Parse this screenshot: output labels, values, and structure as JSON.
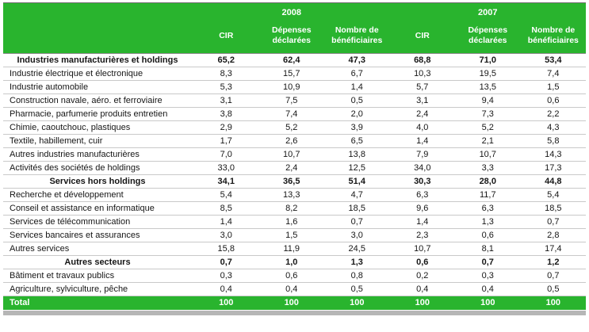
{
  "colors": {
    "header_green": "#29b42e",
    "total_row_green": "#29b42e",
    "header_text": "#ffffff",
    "body_text": "#161616"
  },
  "chart_data": {
    "type": "table",
    "title": "",
    "year_groups": [
      "2008",
      "2007"
    ],
    "sub_columns": [
      "CIR",
      "Dépenses déclarées",
      "Nombre de bénéficiaires"
    ],
    "rows": [
      {
        "label": "Industries manufacturières et holdings",
        "bold": true,
        "values": [
          "65,2",
          "62,4",
          "47,3",
          "68,8",
          "71,0",
          "53,4"
        ]
      },
      {
        "label": "Industrie électrique et électronique",
        "bold": false,
        "values": [
          "8,3",
          "15,7",
          "6,7",
          "10,3",
          "19,5",
          "7,4"
        ]
      },
      {
        "label": "Industrie automobile",
        "bold": false,
        "values": [
          "5,3",
          "10,9",
          "1,4",
          "5,7",
          "13,5",
          "1,5"
        ]
      },
      {
        "label": "Construction navale, aéro. et ferroviaire",
        "bold": false,
        "values": [
          "3,1",
          "7,5",
          "0,5",
          "3,1",
          "9,4",
          "0,6"
        ]
      },
      {
        "label": "Pharmacie, parfumerie produits entretien",
        "bold": false,
        "values": [
          "3,8",
          "7,4",
          "2,0",
          "2,4",
          "7,3",
          "2,2"
        ]
      },
      {
        "label": "Chimie, caoutchouc, plastiques",
        "bold": false,
        "values": [
          "2,9",
          "5,2",
          "3,9",
          "4,0",
          "5,2",
          "4,3"
        ]
      },
      {
        "label": "Textile, habillement, cuir",
        "bold": false,
        "values": [
          "1,7",
          "2,6",
          "6,5",
          "1,4",
          "2,1",
          "5,8"
        ]
      },
      {
        "label": "Autres industries manufacturières",
        "bold": false,
        "values": [
          "7,0",
          "10,7",
          "13,8",
          "7,9",
          "10,7",
          "14,3"
        ]
      },
      {
        "label": "Activités des sociétés de holdings",
        "bold": false,
        "values": [
          "33,0",
          "2,4",
          "12,5",
          "34,0",
          "3,3",
          "17,3"
        ]
      },
      {
        "label": "Services hors holdings",
        "bold": true,
        "values": [
          "34,1",
          "36,5",
          "51,4",
          "30,3",
          "28,0",
          "44,8"
        ]
      },
      {
        "label": "Recherche et développement",
        "bold": false,
        "values": [
          "5,4",
          "13,3",
          "4,7",
          "6,3",
          "11,7",
          "5,4"
        ]
      },
      {
        "label": "Conseil et assistance en informatique",
        "bold": false,
        "values": [
          "8,5",
          "8,2",
          "18,5",
          "9,6",
          "6,3",
          "18,5"
        ]
      },
      {
        "label": "Services de télécommunication",
        "bold": false,
        "values": [
          "1,4",
          "1,6",
          "0,7",
          "1,4",
          "1,3",
          "0,7"
        ]
      },
      {
        "label": "Services bancaires et assurances",
        "bold": false,
        "values": [
          "3,0",
          "1,5",
          "3,0",
          "2,3",
          "0,6",
          "2,8"
        ]
      },
      {
        "label": "Autres services",
        "bold": false,
        "values": [
          "15,8",
          "11,9",
          "24,5",
          "10,7",
          "8,1",
          "17,4"
        ]
      },
      {
        "label": "Autres secteurs",
        "bold": true,
        "values": [
          "0,7",
          "1,0",
          "1,3",
          "0,6",
          "0,7",
          "1,2"
        ]
      },
      {
        "label": "Bâtiment et travaux publics",
        "bold": false,
        "values": [
          "0,3",
          "0,6",
          "0,8",
          "0,2",
          "0,3",
          "0,7"
        ]
      },
      {
        "label": "Agriculture, sylviculture, pêche",
        "bold": false,
        "values": [
          "0,4",
          "0,4",
          "0,5",
          "0,4",
          "0,4",
          "0,5"
        ]
      }
    ],
    "total": {
      "label": "Total",
      "values": [
        "100",
        "100",
        "100",
        "100",
        "100",
        "100"
      ]
    }
  }
}
